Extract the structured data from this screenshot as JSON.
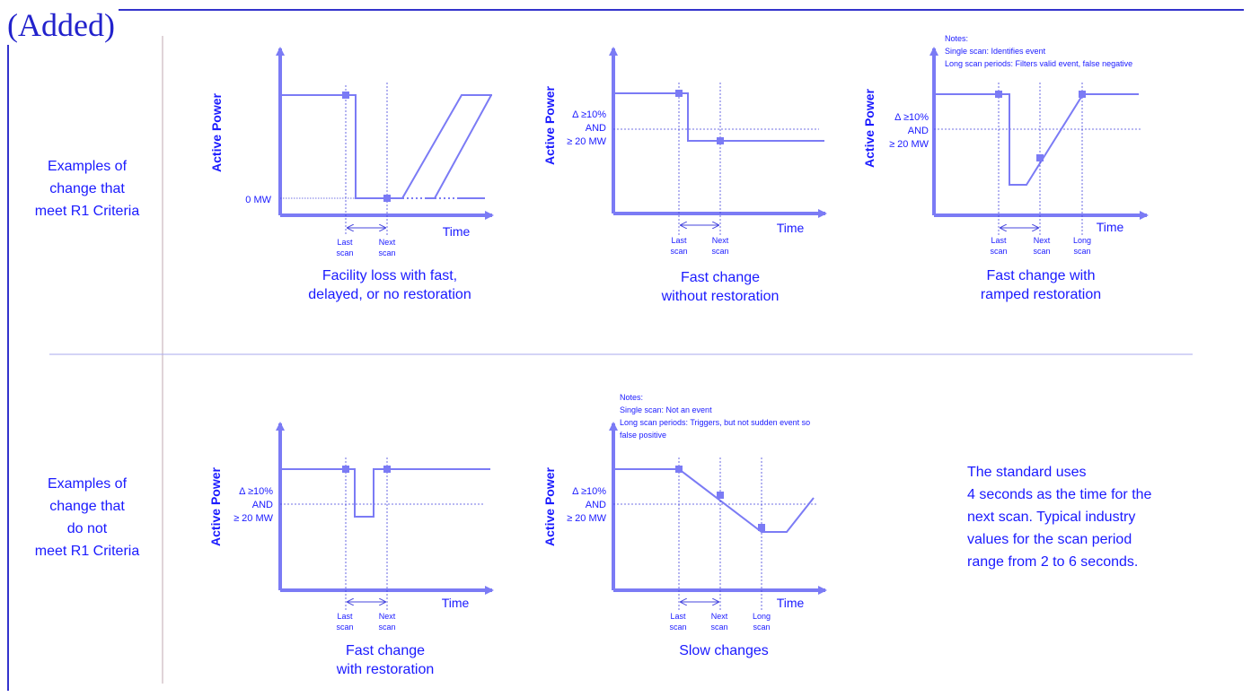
{
  "header": {
    "added": "(Added)"
  },
  "rows": {
    "top_label": [
      "Examples of",
      "change that",
      "meet R1 Criteria"
    ],
    "bottom_label": [
      "Examples of",
      "change that",
      "do not",
      "meet R1 Criteria"
    ]
  },
  "common": {
    "ylabel": "Active Power",
    "xlabel": "Time",
    "zero_mw": "0 MW",
    "delta_lines": [
      "Δ ≥10%",
      "AND",
      "≥ 20 MW"
    ],
    "last_scan": [
      "Last",
      "scan"
    ],
    "next_scan": [
      "Next",
      "scan"
    ],
    "long_scan": [
      "Long",
      "scan"
    ]
  },
  "diagrams": {
    "d1": {
      "caption": [
        "Facility loss with fast,",
        "delayed, or no restoration"
      ]
    },
    "d2": {
      "caption": [
        "Fast change",
        "without restoration"
      ]
    },
    "d3": {
      "caption": [
        "Fast change with",
        "ramped restoration"
      ],
      "notes": [
        "Notes:",
        "Single scan: Identifies event",
        "Long scan periods: Filters valid event, false negative"
      ]
    },
    "d4": {
      "caption": [
        "Fast change",
        "with restoration"
      ]
    },
    "d5": {
      "caption": [
        "Slow changes"
      ],
      "notes": [
        "Notes:",
        "Single scan: Not an event",
        "Long scan periods: Triggers, but not sudden event so",
        "false positive"
      ]
    }
  },
  "side_note": [
    "The standard uses",
    "4 seconds as the time for the",
    "next scan. Typical industry",
    "values for the scan period",
    "range from 2 to 6 seconds."
  ],
  "colors": {
    "line": "#7b7bf5",
    "text": "#1a1aff",
    "frame": "#3333cc",
    "divider": "#aaaaee"
  }
}
